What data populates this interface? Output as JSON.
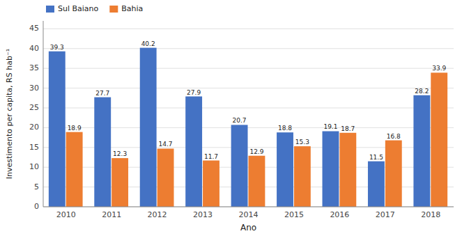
{
  "chart_data": {
    "type": "bar",
    "xlabel": "Ano",
    "ylabel": "Investimento per capita, RS hab⁻¹",
    "categories": [
      "2010",
      "2011",
      "2012",
      "2013",
      "2014",
      "2015",
      "2016",
      "2017",
      "2018"
    ],
    "series": [
      {
        "name": "Sul Baiano",
        "color": "#4472c4",
        "values": [
          39.3,
          27.7,
          40.2,
          27.9,
          20.7,
          18.8,
          19.1,
          11.5,
          28.2
        ]
      },
      {
        "name": "Bahia",
        "color": "#ed7d31",
        "values": [
          18.9,
          12.3,
          14.7,
          11.7,
          12.9,
          15.3,
          18.7,
          16.8,
          33.9
        ]
      }
    ],
    "ylim": [
      0,
      47
    ],
    "yticks": [
      0,
      5,
      10,
      15,
      20,
      25,
      30,
      35,
      40,
      45
    ],
    "grid": true,
    "legend": "upper left",
    "data_labels": true
  }
}
